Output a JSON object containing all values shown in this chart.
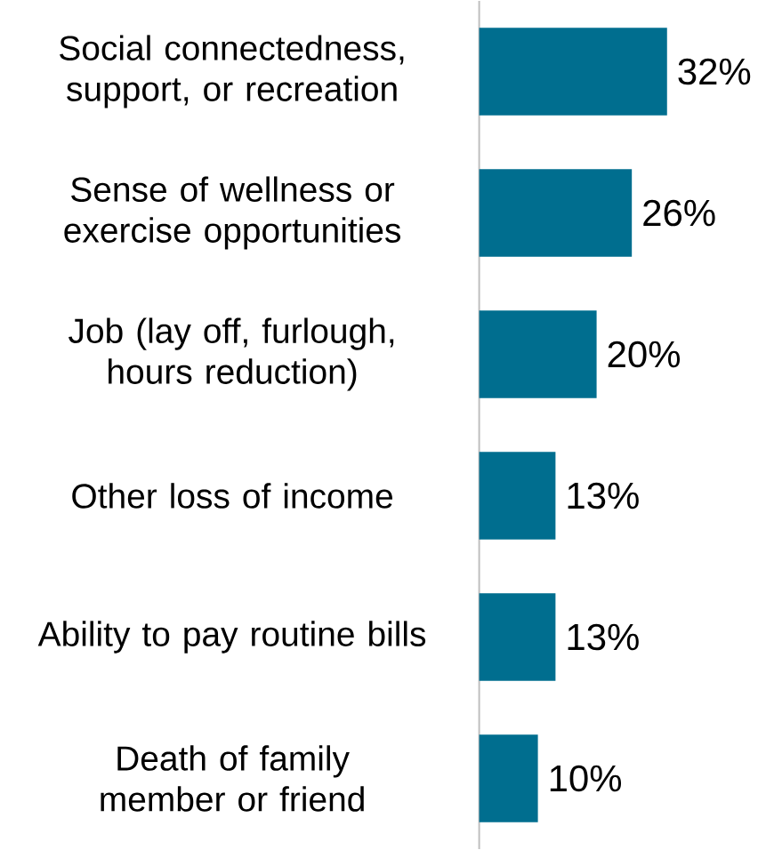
{
  "chart_data": {
    "type": "bar",
    "orientation": "horizontal",
    "categories": [
      "Social connectedness, support, or recreation",
      "Sense of wellness or exercise opportunities",
      "Job (lay off, furlough, hours reduction)",
      "Other loss of income",
      "Ability to pay routine bills",
      "Death of family member or friend"
    ],
    "values": [
      32,
      26,
      20,
      13,
      13,
      10
    ],
    "value_labels": [
      "32%",
      "26%",
      "20%",
      "13%",
      "13%",
      "10%"
    ],
    "color": "#006e8f"
  }
}
